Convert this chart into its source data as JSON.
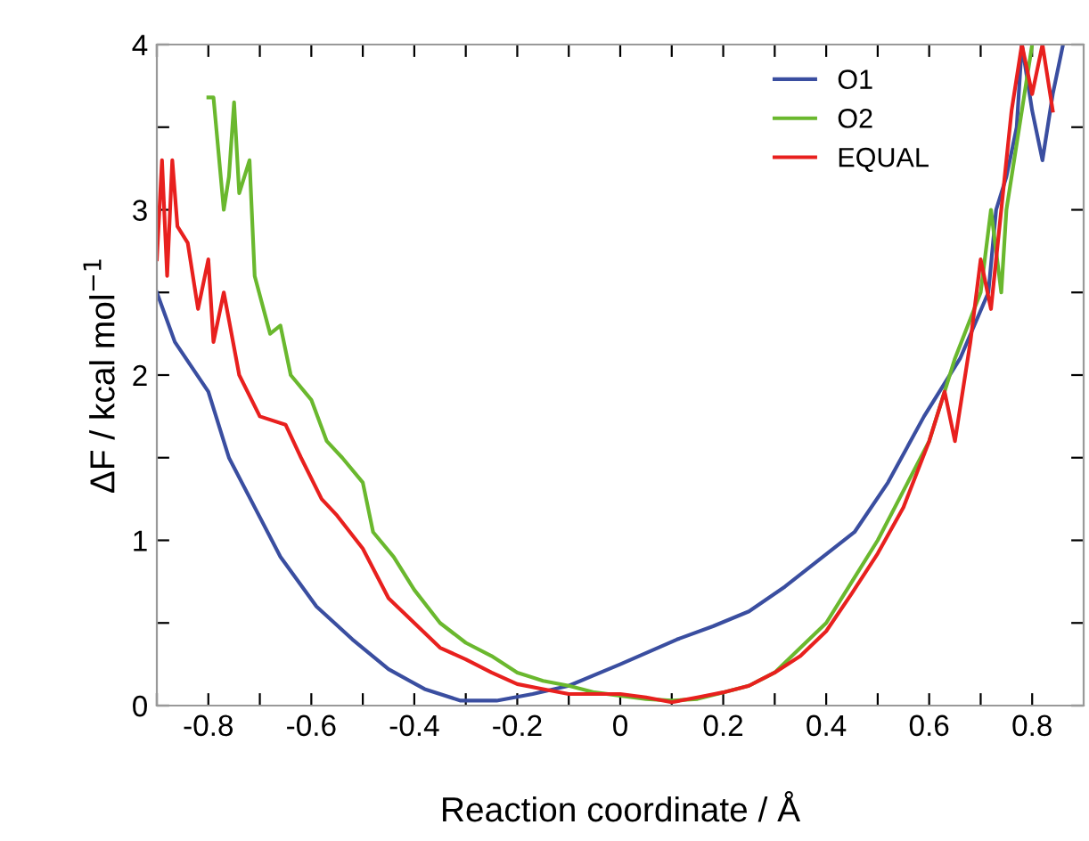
{
  "chart_data": {
    "type": "line",
    "xlabel": "Reaction coordinate / Å",
    "ylabel": "ΔF / kcal mol$^{−1}$",
    "xlim": [
      -0.9,
      0.9
    ],
    "ylim": [
      0,
      4
    ],
    "xticks": [
      {
        "value": -0.9,
        "label": null
      },
      -0.8,
      {
        "value": -0.7,
        "label": null
      },
      -0.6,
      {
        "value": -0.5,
        "label": null
      },
      -0.4,
      {
        "value": -0.3,
        "label": null
      },
      -0.2,
      {
        "value": -0.1,
        "label": null
      },
      0,
      {
        "value": 0.1,
        "label": null
      },
      0.2,
      {
        "value": 0.3,
        "label": null
      },
      0.4,
      {
        "value": 0.5,
        "label": null
      },
      0.6,
      {
        "value": 0.7,
        "label": null
      },
      0.8
    ],
    "yticks": [
      0,
      {
        "value": 0.5,
        "label": null
      },
      1,
      {
        "value": 1.5,
        "label": null
      },
      2,
      {
        "value": 2.5,
        "label": null
      },
      3,
      {
        "value": 3.5,
        "label": null
      },
      4
    ],
    "grid": false,
    "legend": "top right",
    "marker": "none",
    "line_style": "solid",
    "series": [
      {
        "name": "O1",
        "color": "#3a4ea0",
        "x": [
          -0.9,
          -0.865,
          -0.8,
          -0.76,
          -0.71,
          -0.66,
          -0.59,
          -0.52,
          -0.45,
          -0.38,
          -0.31,
          -0.24,
          -0.17,
          -0.1,
          0,
          0.11,
          0.18,
          0.25,
          0.32,
          0.385,
          0.455,
          0.52,
          0.59,
          0.66,
          0.715,
          0.73,
          0.75,
          0.77,
          0.78,
          0.8,
          0.82,
          0.84,
          0.86
        ],
        "values": [
          2.5,
          2.2,
          1.9,
          1.5,
          1.2,
          0.9,
          0.6,
          0.4,
          0.22,
          0.1,
          0.03,
          0.03,
          0.07,
          0.12,
          0.25,
          0.4,
          0.48,
          0.57,
          0.72,
          0.88,
          1.05,
          1.35,
          1.75,
          2.1,
          2.5,
          3.0,
          3.2,
          3.5,
          4.0,
          3.6,
          3.3,
          3.7,
          4.0
        ]
      },
      {
        "name": "O2",
        "color": "#6ab82e",
        "x": [
          -0.8,
          -0.79,
          -0.77,
          -0.76,
          -0.75,
          -0.74,
          -0.72,
          -0.71,
          -0.68,
          -0.66,
          -0.64,
          -0.6,
          -0.57,
          -0.54,
          -0.5,
          -0.48,
          -0.44,
          -0.4,
          -0.35,
          -0.3,
          -0.25,
          -0.2,
          -0.15,
          -0.1,
          -0.05,
          0,
          0.05,
          0.1,
          0.15,
          0.2,
          0.25,
          0.3,
          0.35,
          0.4,
          0.45,
          0.5,
          0.55,
          0.6,
          0.65,
          0.7,
          0.72,
          0.74,
          0.75,
          0.76,
          0.78,
          0.8
        ],
        "values": [
          3.68,
          3.68,
          3.0,
          3.2,
          3.65,
          3.1,
          3.3,
          2.6,
          2.25,
          2.3,
          2.0,
          1.85,
          1.6,
          1.5,
          1.35,
          1.05,
          0.9,
          0.7,
          0.5,
          0.38,
          0.3,
          0.2,
          0.15,
          0.12,
          0.08,
          0.06,
          0.04,
          0.03,
          0.04,
          0.08,
          0.12,
          0.2,
          0.35,
          0.5,
          0.75,
          1.0,
          1.3,
          1.6,
          2.1,
          2.5,
          3.0,
          2.5,
          3.0,
          3.2,
          3.6,
          4.0
        ]
      },
      {
        "name": "EQUAL",
        "color": "#e8201e",
        "x": [
          -0.9,
          -0.89,
          -0.88,
          -0.87,
          -0.86,
          -0.84,
          -0.82,
          -0.8,
          -0.79,
          -0.77,
          -0.74,
          -0.7,
          -0.65,
          -0.62,
          -0.58,
          -0.55,
          -0.5,
          -0.45,
          -0.4,
          -0.35,
          -0.3,
          -0.25,
          -0.2,
          -0.15,
          -0.1,
          -0.05,
          0,
          0.05,
          0.1,
          0.15,
          0.2,
          0.25,
          0.3,
          0.35,
          0.4,
          0.45,
          0.5,
          0.55,
          0.6,
          0.63,
          0.65,
          0.68,
          0.7,
          0.72,
          0.74,
          0.76,
          0.78,
          0.8,
          0.82,
          0.84
        ],
        "values": [
          2.7,
          3.3,
          2.6,
          3.3,
          2.9,
          2.8,
          2.4,
          2.7,
          2.2,
          2.5,
          2.0,
          1.75,
          1.7,
          1.5,
          1.25,
          1.15,
          0.95,
          0.65,
          0.5,
          0.35,
          0.28,
          0.2,
          0.13,
          0.1,
          0.07,
          0.07,
          0.07,
          0.05,
          0.02,
          0.05,
          0.08,
          0.12,
          0.2,
          0.3,
          0.45,
          0.68,
          0.92,
          1.2,
          1.6,
          1.9,
          1.6,
          2.2,
          2.7,
          2.4,
          3.0,
          3.6,
          4.0,
          3.7,
          4.0,
          3.6
        ]
      }
    ]
  }
}
